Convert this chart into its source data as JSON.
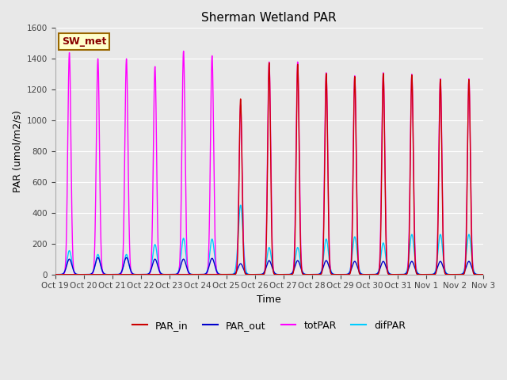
{
  "title": "Sherman Wetland PAR",
  "ylabel": "PAR (umol/m2/s)",
  "xlabel": "Time",
  "ylim": [
    0,
    1600
  ],
  "fig_bg_color": "#e8e8e8",
  "plot_bg_color": "#e8e8e8",
  "legend_label": "SW_met",
  "legend_box_color": "#ffffcc",
  "legend_box_edge": "#996600",
  "series": {
    "PAR_in": {
      "color": "#cc0000",
      "zorder": 4,
      "lw": 1.0
    },
    "PAR_out": {
      "color": "#0000cc",
      "zorder": 3,
      "lw": 1.0
    },
    "totPAR": {
      "color": "#ff00ff",
      "zorder": 2,
      "lw": 1.0
    },
    "difPAR": {
      "color": "#00ccff",
      "zorder": 1,
      "lw": 1.0
    }
  },
  "tick_labels": [
    "Oct 19",
    "Oct 20",
    "Oct 21",
    "Oct 22",
    "Oct 23",
    "Oct 24",
    "Oct 25",
    "Oct 26",
    "Oct 27",
    "Oct 28",
    "Oct 29",
    "Oct 30",
    "Oct 31",
    "Nov 1",
    "Nov 2",
    "Nov 3"
  ],
  "n_days": 15,
  "sigma_tot": 0.055,
  "sigma_out": 0.09,
  "sigma_dif": 0.08,
  "sigma_in": 0.05,
  "day_peaks": {
    "totPAR": [
      1440,
      1400,
      1400,
      1350,
      1450,
      1420,
      1100,
      1380,
      1380,
      1310,
      1290,
      1310,
      1300,
      1270,
      1270
    ],
    "PAR_in": [
      0,
      0,
      0,
      0,
      0,
      0,
      1140,
      1375,
      1365,
      1305,
      1285,
      1305,
      1295,
      1265,
      1265
    ],
    "PAR_out": [
      100,
      110,
      110,
      100,
      100,
      105,
      70,
      90,
      90,
      90,
      85,
      85,
      85,
      85,
      85
    ],
    "difPAR": [
      155,
      130,
      130,
      195,
      235,
      230,
      450,
      175,
      175,
      230,
      245,
      205,
      260,
      260,
      260
    ]
  }
}
